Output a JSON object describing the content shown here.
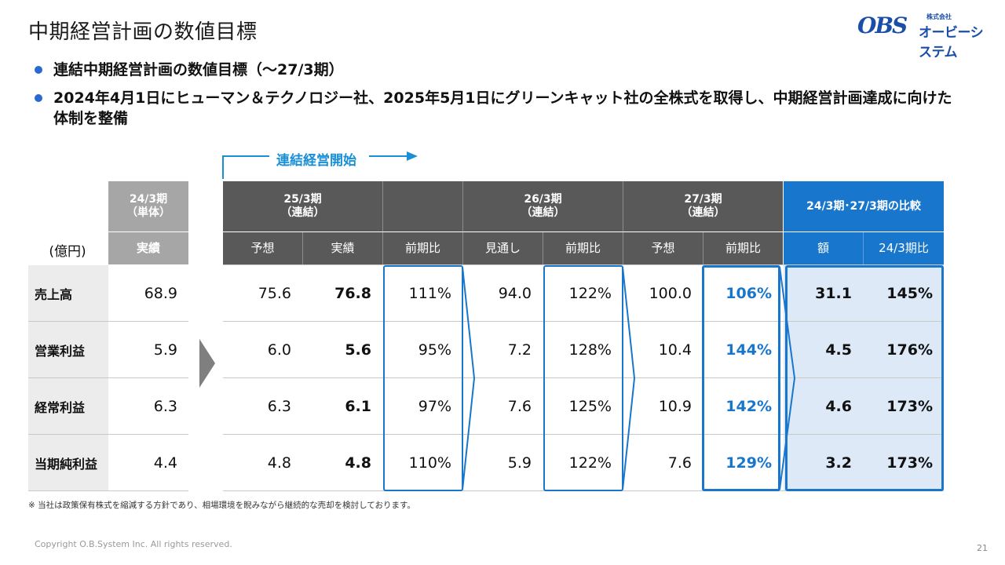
{
  "title": "中期経営計画の数値目標",
  "logo": {
    "mark": "OBS",
    "small": "株式会社",
    "name": "オービーシステム"
  },
  "bullets": [
    "連結中期経営計画の数値目標（～27/3期）",
    "2024年4月1日にヒューマン＆テクノロジー社、2025年5月1日にグリーンキャット社の全株式を取得し、中期経営計画達成に向けた体制を整備"
  ],
  "consolidation_label": "連結経営開始",
  "unit": "(億円)",
  "headers": {
    "fy24": "24/3期\n（単体）",
    "fy24_sub": "実績",
    "fy25": "25/3期\n（連結）",
    "fy25_sub": [
      "予想",
      "実績",
      "前期比"
    ],
    "fy26": "26/3期\n（連結）",
    "fy26_sub": [
      "見通し",
      "前期比"
    ],
    "fy27": "27/3期\n（連結）",
    "fy27_sub": [
      "予想",
      "前期比"
    ],
    "cmp": "24/3期･27/3期の比較",
    "cmp_sub": [
      "額",
      "24/3期比"
    ]
  },
  "rows": [
    {
      "label": "売上高",
      "fy24": "68.9",
      "fy25_forecast": "75.6",
      "fy25_actual": "76.8",
      "fy25_yoy": "111%",
      "fy26_outlook": "94.0",
      "fy26_yoy": "122%",
      "fy27_forecast": "100.0",
      "fy27_yoy": "106%",
      "cmp_amount": "31.1",
      "cmp_ratio": "145%"
    },
    {
      "label": "営業利益",
      "fy24": "5.9",
      "fy25_forecast": "6.0",
      "fy25_actual": "5.6",
      "fy25_yoy": "95%",
      "fy26_outlook": "7.2",
      "fy26_yoy": "128%",
      "fy27_forecast": "10.4",
      "fy27_yoy": "144%",
      "cmp_amount": "4.5",
      "cmp_ratio": "176%"
    },
    {
      "label": "経常利益",
      "fy24": "6.3",
      "fy25_forecast": "6.3",
      "fy25_actual": "6.1",
      "fy25_yoy": "97%",
      "fy26_outlook": "7.6",
      "fy26_yoy": "125%",
      "fy27_forecast": "10.9",
      "fy27_yoy": "142%",
      "cmp_amount": "4.6",
      "cmp_ratio": "173%"
    },
    {
      "label": "当期純利益",
      "fy24": "4.4",
      "fy25_forecast": "4.8",
      "fy25_actual": "4.8",
      "fy25_yoy": "110%",
      "fy26_outlook": "5.9",
      "fy26_yoy": "122%",
      "fy27_forecast": "7.6",
      "fy27_yoy": "129%",
      "cmp_amount": "3.2",
      "cmp_ratio": "173%"
    }
  ],
  "footnote": "※ 当社は政策保有株式を縮減する方針であり、相場環境を睨みながら継続的な売却を検討しております。",
  "copyright": "Copyright O.B.System Inc. All rights reserved.",
  "page_number": "21",
  "colors": {
    "accent_blue": "#1876cc",
    "arrow_blue": "#1a8fd6",
    "header_dark": "#595959",
    "header_gray": "#a6a6a6",
    "compare_bg": "#dde9f7"
  }
}
